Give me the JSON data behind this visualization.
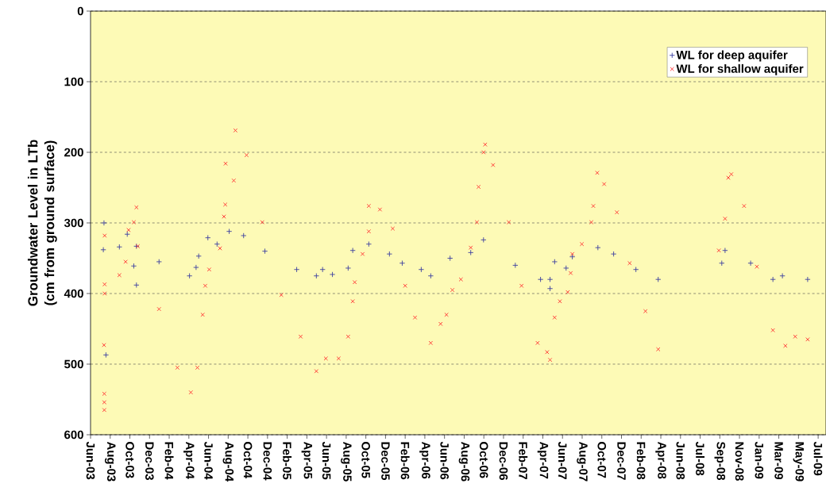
{
  "chart_data": {
    "type": "scatter",
    "ylabel": "Groundwater Level in LTb (cm from ground surface)",
    "xlim": [
      "2003-06-28",
      "2009-08-19"
    ],
    "xticks": [
      {
        "value": "2003-06-28",
        "label": "Jun-03"
      },
      {
        "value": "2003-08-27",
        "label": "Aug-03"
      },
      {
        "value": "2003-10-26",
        "label": "Oct-03"
      },
      {
        "value": "2003-12-25",
        "label": "Dec-03"
      },
      {
        "value": "2004-02-23",
        "label": "Feb-04"
      },
      {
        "value": "2004-04-23",
        "label": "Apr-04"
      },
      {
        "value": "2004-06-22",
        "label": "Jun-04"
      },
      {
        "value": "2004-08-21",
        "label": "Aug-04"
      },
      {
        "value": "2004-10-20",
        "label": "Oct-04"
      },
      {
        "value": "2004-12-19",
        "label": "Dec-04"
      },
      {
        "value": "2005-02-17",
        "label": "Feb-05"
      },
      {
        "value": "2005-04-18",
        "label": "Apr-05"
      },
      {
        "value": "2005-06-17",
        "label": "Jun-05"
      },
      {
        "value": "2005-08-16",
        "label": "Aug-05"
      },
      {
        "value": "2005-10-15",
        "label": "Oct-05"
      },
      {
        "value": "2005-12-14",
        "label": "Dec-05"
      },
      {
        "value": "2006-02-12",
        "label": "Feb-06"
      },
      {
        "value": "2006-04-13",
        "label": "Apr-06"
      },
      {
        "value": "2006-06-12",
        "label": "Jun-06"
      },
      {
        "value": "2006-08-11",
        "label": "Aug-06"
      },
      {
        "value": "2006-10-10",
        "label": "Oct-06"
      },
      {
        "value": "2006-12-09",
        "label": "Dec-06"
      },
      {
        "value": "2007-02-07",
        "label": "Feb-07"
      },
      {
        "value": "2007-04-08",
        "label": "Apr-07"
      },
      {
        "value": "2007-06-07",
        "label": "Jun-07"
      },
      {
        "value": "2007-08-06",
        "label": "Aug-07"
      },
      {
        "value": "2007-10-05",
        "label": "Oct-07"
      },
      {
        "value": "2007-12-04",
        "label": "Dec-07"
      },
      {
        "value": "2008-02-02",
        "label": "Feb-08"
      },
      {
        "value": "2008-04-02",
        "label": "Apr-08"
      },
      {
        "value": "2008-06-01",
        "label": "Jun-08"
      },
      {
        "value": "2008-07-31",
        "label": "Jul-08"
      },
      {
        "value": "2008-09-29",
        "label": "Sep-08"
      },
      {
        "value": "2008-11-28",
        "label": "Nov-08"
      },
      {
        "value": "2009-01-27",
        "label": "Jan-09"
      },
      {
        "value": "2009-03-28",
        "label": "Mar-09"
      },
      {
        "value": "2009-05-27",
        "label": "May-09"
      },
      {
        "value": "2009-07-26",
        "label": "Jul-09"
      }
    ],
    "ylim": [
      600,
      0
    ],
    "yticks": [
      0,
      100,
      200,
      300,
      400,
      500,
      600
    ],
    "grid": "y",
    "legend": "top right",
    "series": [
      {
        "name": "WL for deep aquifer",
        "color": "#3b3fa0",
        "marker": "plus",
        "x": [
          "2003-08-08",
          "2003-08-14",
          "2003-08-06",
          "2003-09-24",
          "2003-10-18",
          "2003-11-07",
          "2003-11-15",
          "2003-11-15",
          "2004-01-23",
          "2004-04-25",
          "2004-05-15",
          "2004-05-23",
          "2004-06-20",
          "2004-07-18",
          "2004-08-24",
          "2004-10-07",
          "2004-12-11",
          "2005-03-18",
          "2005-05-17",
          "2005-06-05",
          "2005-07-05",
          "2005-08-22",
          "2005-09-05",
          "2005-10-24",
          "2005-12-26",
          "2006-02-03",
          "2006-04-02",
          "2006-05-01",
          "2006-06-29",
          "2006-08-31",
          "2006-10-09",
          "2007-01-14",
          "2007-04-01",
          "2007-04-30",
          "2007-04-30",
          "2007-05-14",
          "2007-06-18",
          "2007-07-07",
          "2007-09-23",
          "2007-11-10",
          "2008-01-17",
          "2008-03-25",
          "2008-10-05",
          "2008-10-15",
          "2009-01-01",
          "2009-03-10",
          "2009-04-08",
          "2009-06-24"
        ],
        "values": [
          300,
          487,
          338,
          334,
          316,
          361,
          333,
          388,
          355,
          375,
          363,
          347,
          321,
          330,
          312,
          318,
          340,
          366,
          375,
          366,
          373,
          364,
          339,
          330,
          344,
          357,
          366,
          375,
          350,
          342,
          324,
          360,
          380,
          380,
          393,
          355,
          364,
          348,
          335,
          344,
          366,
          380,
          357,
          339,
          357,
          380,
          375,
          380
        ]
      },
      {
        "name": "WL for shallow aquifer",
        "color": "#ff3030",
        "marker": "cross",
        "x": [
          "2003-08-10",
          "2003-08-08",
          "2003-08-09",
          "2003-08-09",
          "2003-08-09",
          "2003-08-10",
          "2003-08-10",
          "2003-09-24",
          "2003-10-13",
          "2003-10-22",
          "2003-11-07",
          "2003-11-15",
          "2003-11-19",
          "2004-01-23",
          "2004-03-19",
          "2004-04-29",
          "2004-05-19",
          "2004-06-04",
          "2004-06-12",
          "2004-06-24",
          "2004-07-27",
          "2004-08-08",
          "2004-08-12",
          "2004-08-13",
          "2004-09-07",
          "2004-09-12",
          "2004-10-16",
          "2004-12-03",
          "2005-01-30",
          "2005-03-30",
          "2005-05-17",
          "2005-06-15",
          "2005-07-24",
          "2005-08-22",
          "2005-09-05",
          "2005-09-11",
          "2005-10-05",
          "2005-10-24",
          "2005-10-24",
          "2005-11-27",
          "2006-01-05",
          "2006-02-12",
          "2006-03-14",
          "2006-05-01",
          "2006-05-31",
          "2006-06-18",
          "2006-07-06",
          "2006-08-01",
          "2006-08-31",
          "2006-09-19",
          "2006-09-24",
          "2006-10-09",
          "2006-10-14",
          "2006-11-07",
          "2006-12-25",
          "2007-02-02",
          "2007-03-23",
          "2007-04-21",
          "2007-04-30",
          "2007-05-14",
          "2007-05-30",
          "2007-06-23",
          "2007-07-02",
          "2007-07-07",
          "2007-08-05",
          "2007-09-03",
          "2007-09-09",
          "2007-09-21",
          "2007-10-12",
          "2007-11-20",
          "2007-12-29",
          "2008-02-15",
          "2008-03-25",
          "2008-09-26",
          "2008-10-15",
          "2008-10-25",
          "2008-11-03",
          "2008-12-12",
          "2009-01-20",
          "2009-03-10",
          "2009-04-17",
          "2009-05-17",
          "2009-06-24"
        ],
        "values": [
          318,
          473,
          542,
          554,
          565,
          400,
          387,
          374,
          355,
          310,
          299,
          278,
          333,
          422,
          505,
          540,
          505,
          430,
          389,
          366,
          336,
          291,
          274,
          216,
          240,
          169,
          204,
          299,
          402,
          461,
          510,
          492,
          492,
          461,
          411,
          384,
          344,
          312,
          276,
          281,
          308,
          389,
          434,
          470,
          443,
          430,
          395,
          380,
          335,
          299,
          249,
          200,
          189,
          218,
          299,
          389,
          470,
          483,
          494,
          434,
          411,
          398,
          371,
          344,
          330,
          299,
          276,
          229,
          245,
          285,
          357,
          425,
          479,
          339,
          294,
          236,
          231,
          276,
          362,
          452,
          474,
          461,
          465
        ]
      }
    ]
  }
}
